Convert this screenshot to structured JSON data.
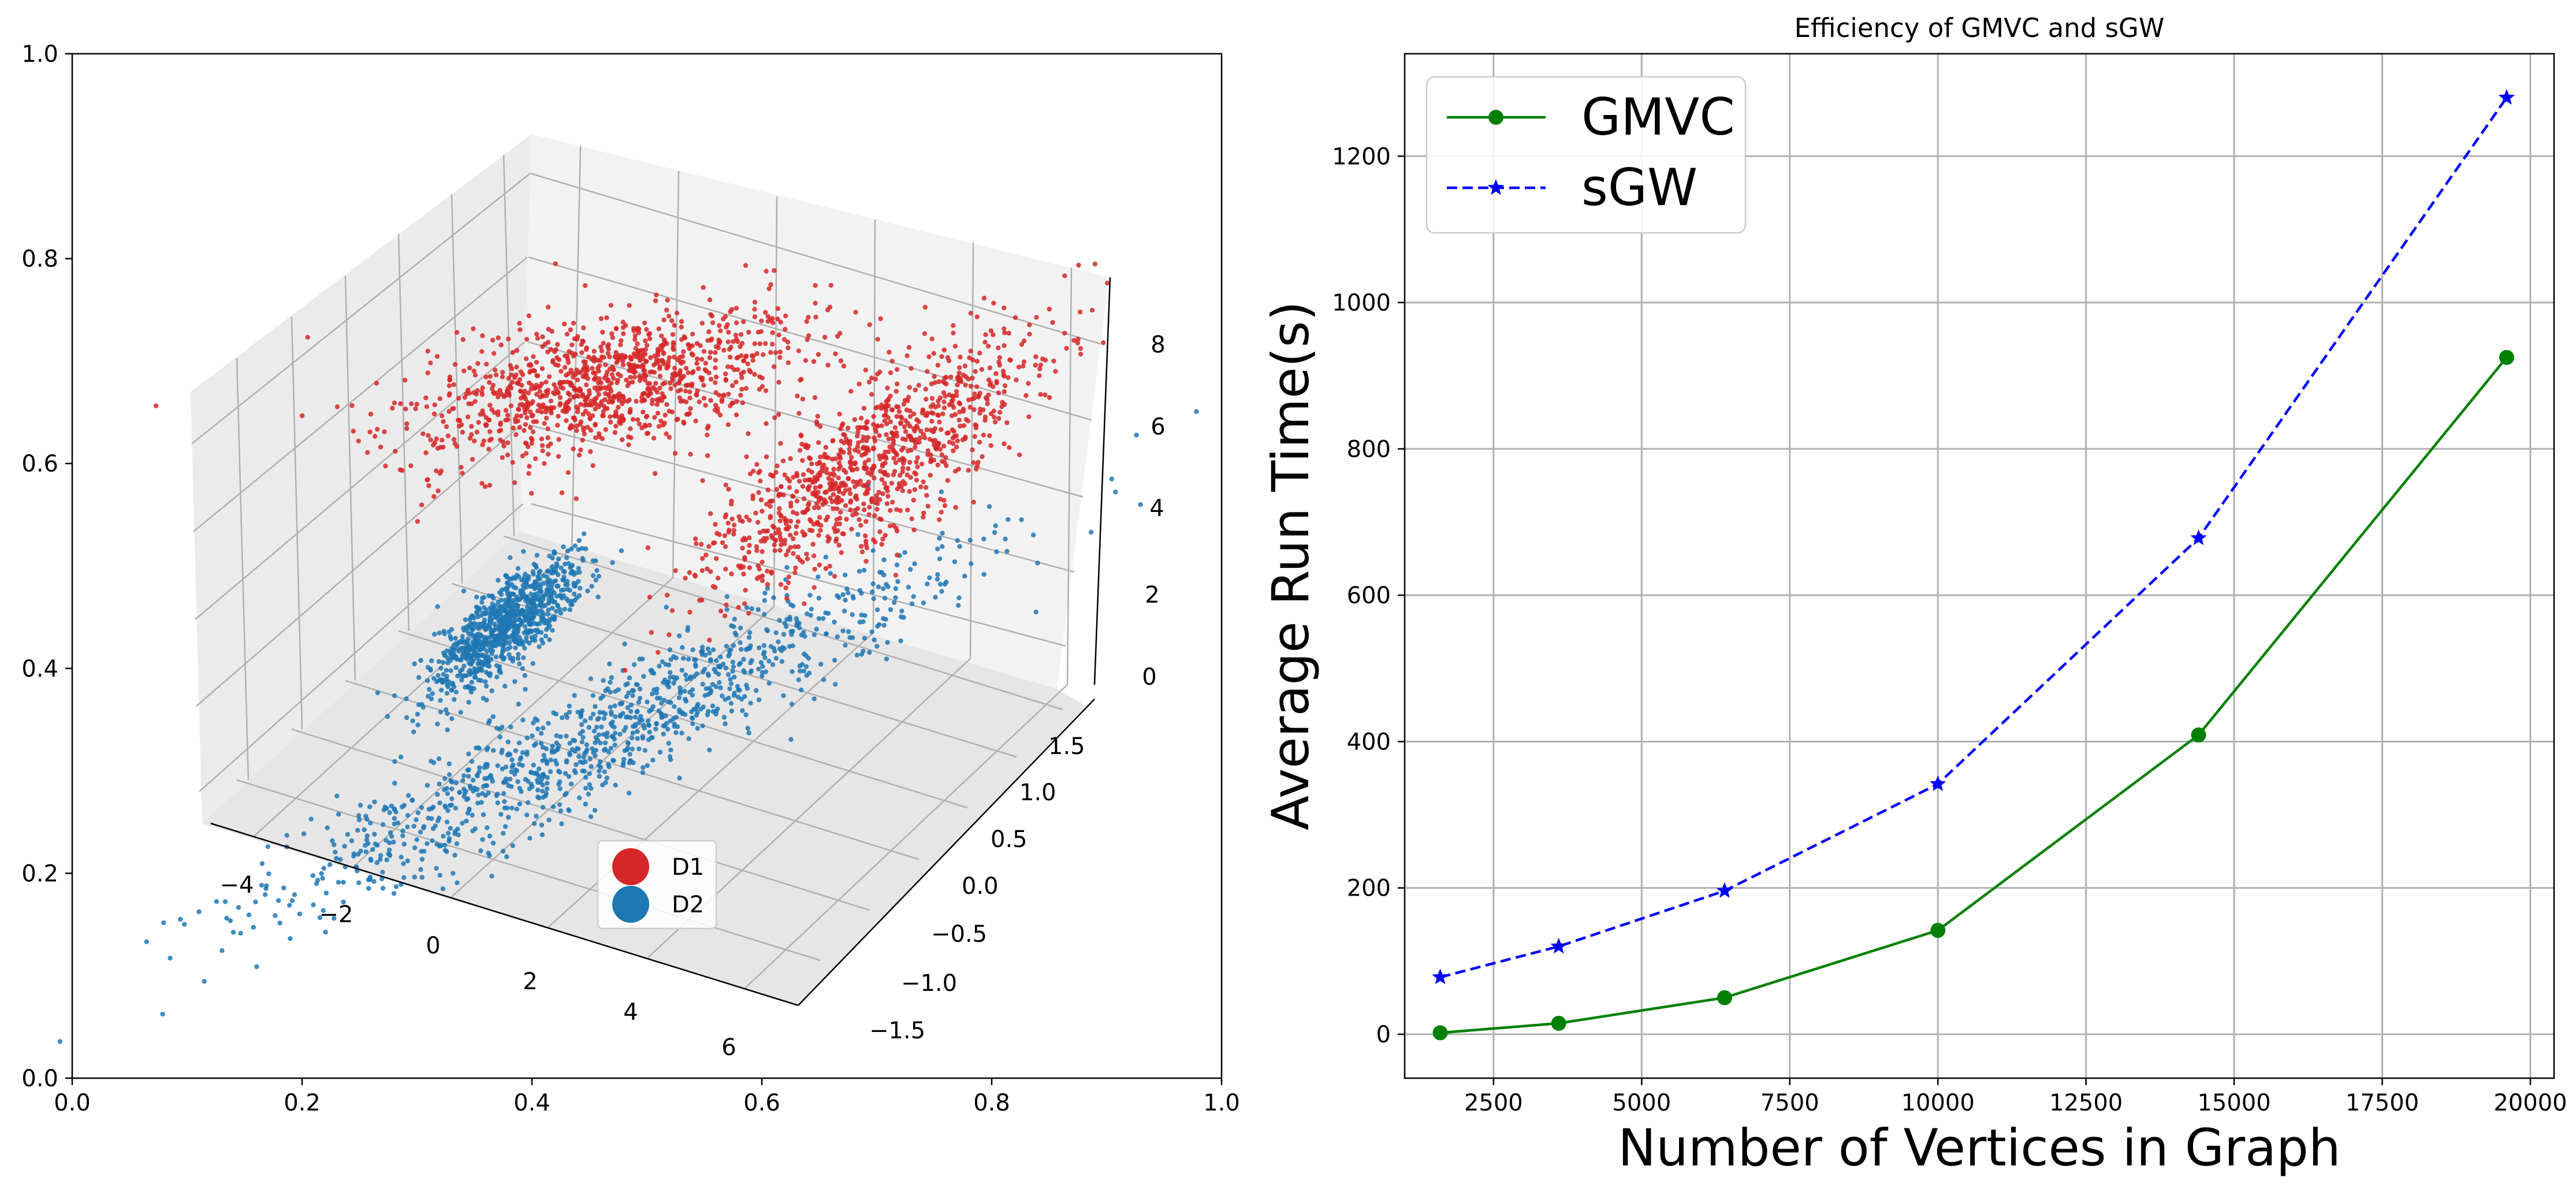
{
  "chart_data": [
    {
      "type": "scatter",
      "projection": "3d",
      "frame": {
        "xlim": [
          0.0,
          1.0
        ],
        "ylim": [
          0.0,
          1.0
        ],
        "x_ticks": [
          "0.0",
          "0.2",
          "0.4",
          "0.6",
          "0.8",
          "1.0"
        ],
        "y_ticks": [
          "0.0",
          "0.2",
          "0.4",
          "0.6",
          "0.8",
          "1.0"
        ]
      },
      "axes3d": {
        "x_ticks": [
          "−4",
          "−2",
          "0",
          "2",
          "4",
          "6"
        ],
        "y_ticks": [
          "−1.5",
          "−1.0",
          "−0.5",
          "0.0",
          "0.5",
          "1.0",
          "1.5"
        ],
        "z_ticks": [
          "0",
          "2",
          "4",
          "6",
          "8"
        ]
      },
      "series": [
        {
          "name": "D1",
          "color": "#d62728"
        },
        {
          "name": "D2",
          "color": "#1f77b4"
        }
      ],
      "legend_placement": "lower-center"
    },
    {
      "type": "line",
      "title": "Efficiency of GMVC and sGW",
      "xlabel": "Number of Vertices in Graph",
      "ylabel": "Average Run Time(s)",
      "x": [
        1600,
        3600,
        6400,
        10000,
        14400,
        19600
      ],
      "xlim": [
        1000,
        20400
      ],
      "ylim": [
        -60,
        1340
      ],
      "x_ticks": [
        "2500",
        "5000",
        "7500",
        "10000",
        "12500",
        "15000",
        "17500",
        "20000"
      ],
      "y_ticks": [
        "0",
        "200",
        "400",
        "600",
        "800",
        "1000",
        "1200"
      ],
      "grid": true,
      "legend_placement": "top-left",
      "series": [
        {
          "name": "GMVC",
          "color": "#008000",
          "marker": "circle",
          "line": "solid",
          "values": [
            2,
            15,
            50,
            142,
            409,
            925
          ]
        },
        {
          "name": "sGW",
          "color": "#0000ff",
          "marker": "star",
          "line": "dashed",
          "values": [
            78,
            120,
            196,
            342,
            678,
            1280
          ]
        }
      ]
    }
  ]
}
